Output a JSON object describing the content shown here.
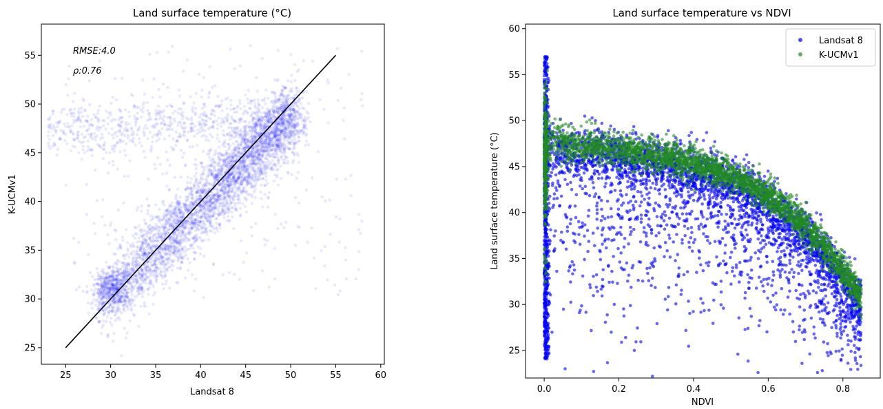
{
  "colors": {
    "landsat": "#0000ff",
    "kucm": "#228b22",
    "identity_line": "#000000",
    "axis": "#000000",
    "background": "#ffffff"
  },
  "chart_data": [
    {
      "type": "scatter",
      "title": "Land surface temperature (°C)",
      "xlabel": "Landsat 8",
      "ylabel": "K-UCMv1",
      "xlim": [
        22.3,
        60.4
      ],
      "ylim": [
        23.3,
        58.2
      ],
      "xticks": [
        25,
        30,
        35,
        40,
        45,
        50,
        55,
        60
      ],
      "yticks": [
        25,
        30,
        35,
        40,
        45,
        50,
        55
      ],
      "grid": false,
      "annotations": [
        "RMSE:4.0",
        "ρ:0.76"
      ],
      "reference_line": {
        "x": [
          25,
          55
        ],
        "y": [
          25,
          55
        ],
        "color": "#000000"
      },
      "series": [
        {
          "marker_color": "#0000ff",
          "alpha": 0.08,
          "approx_points": 14000,
          "x": [
            29.5,
            30,
            31,
            32,
            34,
            36,
            38,
            40,
            42,
            44,
            46,
            48,
            50,
            35,
            40,
            45,
            25,
            28,
            58
          ],
          "y": [
            30.5,
            30,
            31.5,
            33,
            34.5,
            36.5,
            38.5,
            40.5,
            42.5,
            44.5,
            46.5,
            48,
            49,
            48.5,
            47,
            46,
            46.5,
            48,
            44
          ]
        }
      ]
    },
    {
      "type": "scatter",
      "title": "Land surface temperature vs NDVI",
      "xlabel": "NDVI",
      "ylabel": "Land surface temperature (°C)",
      "xlim": [
        -0.05,
        0.9
      ],
      "ylim": [
        22,
        60.5
      ],
      "xticks": [
        0.0,
        0.2,
        0.4,
        0.6,
        0.8
      ],
      "yticks": [
        25,
        30,
        35,
        40,
        45,
        50,
        55,
        60
      ],
      "grid": false,
      "legend": {
        "position": "top-right",
        "entries": [
          "Landsat 8",
          "K-UCMv1"
        ]
      },
      "series": [
        {
          "name": "Landsat 8",
          "marker_color": "#0000ff",
          "alpha": 0.6,
          "approx_points": 9000,
          "x": [
            0.0,
            0.0,
            0.05,
            0.1,
            0.2,
            0.3,
            0.4,
            0.5,
            0.6,
            0.7,
            0.8,
            0.85
          ],
          "y": [
            58,
            24,
            46,
            46,
            45,
            43.5,
            42,
            40,
            38,
            35.5,
            32,
            29
          ]
        },
        {
          "name": "K-UCMv1",
          "marker_color": "#228b22",
          "alpha": 0.6,
          "approx_points": 9000,
          "x": [
            0.0,
            0.0,
            0.05,
            0.1,
            0.2,
            0.3,
            0.4,
            0.5,
            0.6,
            0.7,
            0.8,
            0.85
          ],
          "y": [
            56,
            25,
            47,
            46.5,
            45.5,
            44.5,
            43,
            41,
            38.5,
            36,
            32.5,
            27
          ]
        }
      ]
    }
  ]
}
